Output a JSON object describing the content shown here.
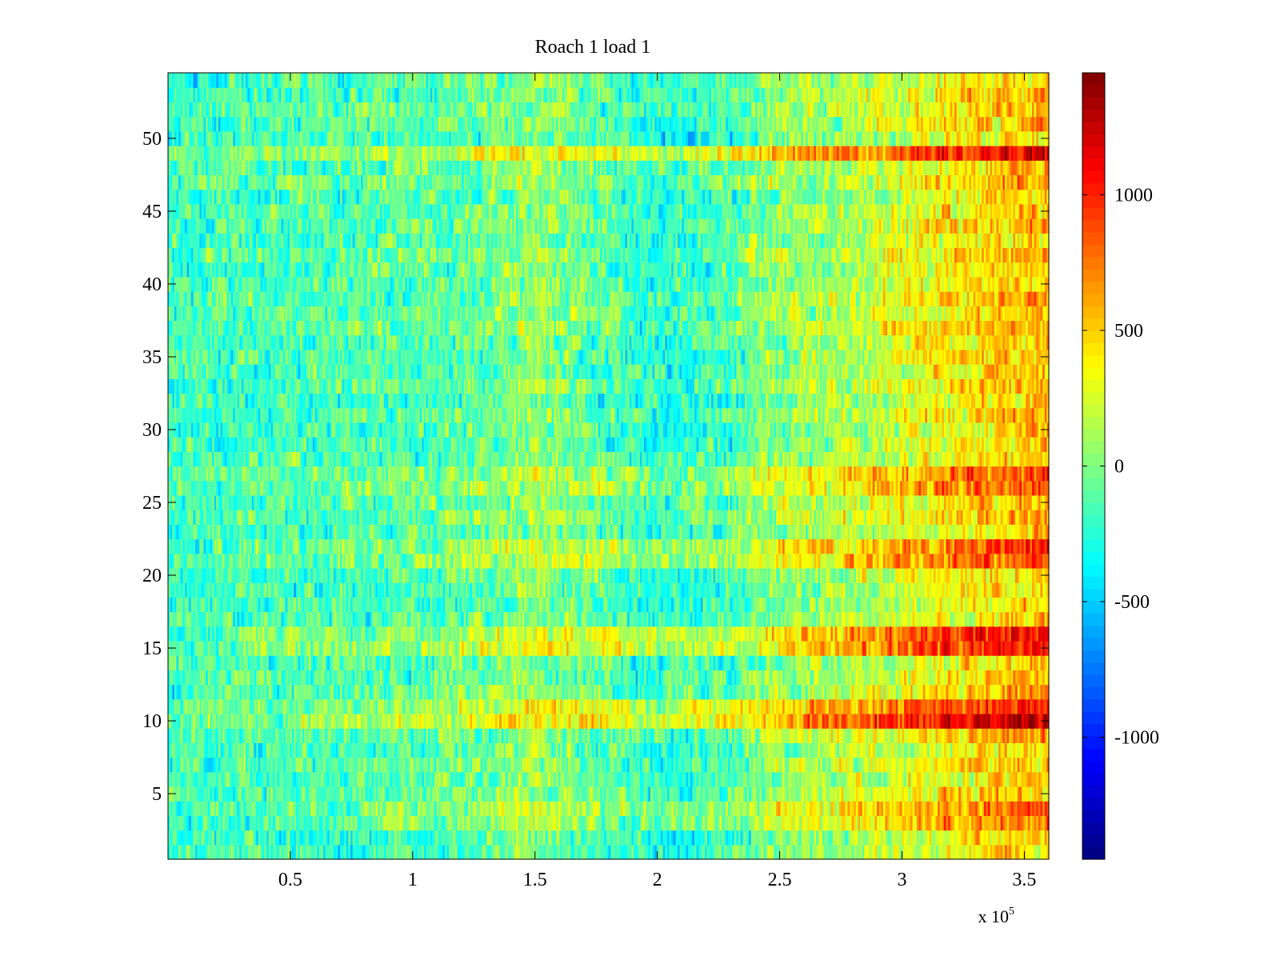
{
  "chart_data": {
    "type": "heatmap",
    "title": "Roach 1 load 1",
    "xlabel": "",
    "ylabel": "",
    "x_exponent_label": "x 10",
    "x_exponent_power": "5",
    "xlim": [
      0,
      3.6
    ],
    "ylim": [
      0.5,
      54.5
    ],
    "xticks": [
      0.5,
      1,
      1.5,
      2,
      2.5,
      3,
      3.5
    ],
    "xtick_labels": [
      "0.5",
      "1",
      "1.5",
      "2",
      "2.5",
      "3",
      "3.5"
    ],
    "yticks": [
      5,
      10,
      15,
      20,
      25,
      30,
      35,
      40,
      45,
      50
    ],
    "ytick_labels": [
      "5",
      "10",
      "15",
      "20",
      "25",
      "30",
      "35",
      "40",
      "45",
      "50"
    ],
    "rows": 54,
    "colormap": "jet",
    "clim": [
      -1450,
      1450
    ],
    "colorbar_ticks": [
      -1000,
      -500,
      0,
      500,
      1000
    ],
    "colorbar_labels": [
      "-1000",
      "-500",
      "0",
      "500",
      "1000"
    ],
    "column_trend": [
      [
        0.0,
        -180
      ],
      [
        0.5,
        -150
      ],
      [
        1.0,
        -120
      ],
      [
        1.3,
        -60
      ],
      [
        1.5,
        40
      ],
      [
        1.75,
        -80
      ],
      [
        2.0,
        -230
      ],
      [
        2.3,
        -140
      ],
      [
        2.5,
        60
      ],
      [
        2.75,
        130
      ],
      [
        3.0,
        260
      ],
      [
        3.25,
        420
      ],
      [
        3.6,
        560
      ]
    ],
    "row_effects": [
      {
        "row": 49,
        "delta": 220
      },
      {
        "row": 27,
        "delta": 150
      },
      {
        "row": 26,
        "delta": 120
      },
      {
        "row": 10,
        "delta": 250
      },
      {
        "row": 11,
        "delta": 180
      },
      {
        "row": 15,
        "delta": 230
      },
      {
        "row": 16,
        "delta": 200
      },
      {
        "row": 21,
        "delta": 130
      },
      {
        "row": 22,
        "delta": 120
      },
      {
        "row": 3,
        "delta": 110
      },
      {
        "row": 4,
        "delta": 90
      }
    ]
  },
  "colors": {
    "background": "#ffffff",
    "axis": "#000000"
  }
}
